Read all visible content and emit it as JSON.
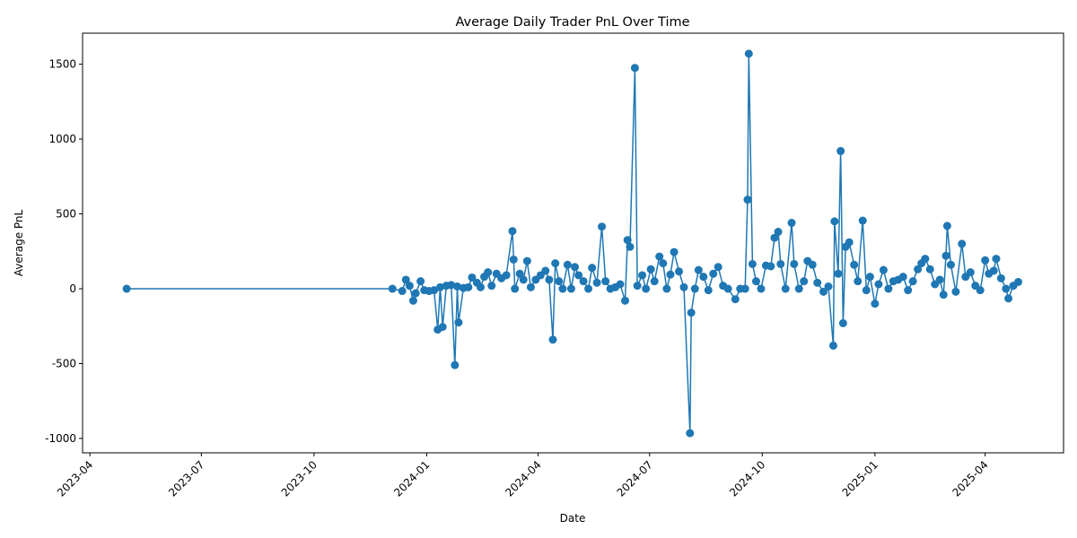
{
  "chart_data": {
    "type": "line",
    "title": "Average Daily Trader PnL Over Time",
    "x_label": "Date",
    "y_label": "Average PnL",
    "xlim": [
      "2023-03-26",
      "2025-06-04"
    ],
    "xticks": [
      "2023-04",
      "2023-07",
      "2023-10",
      "2024-01",
      "2024-04",
      "2024-07",
      "2024-10",
      "2025-01",
      "2025-04"
    ],
    "ylim": [
      -1096,
      1707
    ],
    "yticks": [
      -1000,
      -500,
      0,
      500,
      1000,
      1500
    ],
    "grid": false,
    "x": [
      "2023-05-01",
      "2023-12-04",
      "2023-12-12",
      "2023-12-15",
      "2023-12-18",
      "2023-12-21",
      "2023-12-23",
      "2023-12-27",
      "2023-12-30",
      "2024-01-03",
      "2024-01-07",
      "2024-01-10",
      "2024-01-12",
      "2024-01-14",
      "2024-01-17",
      "2024-01-21",
      "2024-01-24",
      "2024-01-26",
      "2024-01-27",
      "2024-01-31",
      "2024-02-04",
      "2024-02-07",
      "2024-02-11",
      "2024-02-14",
      "2024-02-17",
      "2024-02-20",
      "2024-02-23",
      "2024-02-27",
      "2024-03-02",
      "2024-03-06",
      "2024-03-11",
      "2024-03-12",
      "2024-03-13",
      "2024-03-17",
      "2024-03-20",
      "2024-03-23",
      "2024-03-26",
      "2024-03-30",
      "2024-04-03",
      "2024-04-07",
      "2024-04-10",
      "2024-04-13",
      "2024-04-15",
      "2024-04-18",
      "2024-04-21",
      "2024-04-25",
      "2024-04-28",
      "2024-05-01",
      "2024-05-04",
      "2024-05-08",
      "2024-05-12",
      "2024-05-15",
      "2024-05-19",
      "2024-05-23",
      "2024-05-26",
      "2024-05-30",
      "2024-06-03",
      "2024-06-07",
      "2024-06-11",
      "2024-06-13",
      "2024-06-15",
      "2024-06-19",
      "2024-06-21",
      "2024-06-25",
      "2024-06-28",
      "2024-07-02",
      "2024-07-05",
      "2024-07-09",
      "2024-07-12",
      "2024-07-15",
      "2024-07-18",
      "2024-07-21",
      "2024-07-25",
      "2024-07-29",
      "2024-08-03",
      "2024-08-04",
      "2024-08-07",
      "2024-08-10",
      "2024-08-14",
      "2024-08-18",
      "2024-08-22",
      "2024-08-26",
      "2024-08-30",
      "2024-09-03",
      "2024-09-09",
      "2024-09-13",
      "2024-09-17",
      "2024-09-19",
      "2024-09-20",
      "2024-09-23",
      "2024-09-26",
      "2024-09-30",
      "2024-10-04",
      "2024-10-08",
      "2024-10-11",
      "2024-10-14",
      "2024-10-16",
      "2024-10-20",
      "2024-10-25",
      "2024-10-27",
      "2024-10-31",
      "2024-11-04",
      "2024-11-07",
      "2024-11-11",
      "2024-11-15",
      "2024-11-20",
      "2024-11-24",
      "2024-11-28",
      "2024-11-29",
      "2024-12-02",
      "2024-12-04",
      "2024-12-06",
      "2024-12-08",
      "2024-12-11",
      "2024-12-15",
      "2024-12-18",
      "2024-12-22",
      "2024-12-25",
      "2024-12-28",
      "2025-01-01",
      "2025-01-04",
      "2025-01-08",
      "2025-01-12",
      "2025-01-16",
      "2025-01-20",
      "2025-01-24",
      "2025-01-28",
      "2025-02-01",
      "2025-02-05",
      "2025-02-08",
      "2025-02-11",
      "2025-02-15",
      "2025-02-19",
      "2025-02-23",
      "2025-02-26",
      "2025-02-28",
      "2025-03-01",
      "2025-03-04",
      "2025-03-08",
      "2025-03-13",
      "2025-03-16",
      "2025-03-20",
      "2025-03-24",
      "2025-03-28",
      "2025-04-01",
      "2025-04-04",
      "2025-04-08",
      "2025-04-10",
      "2025-04-14",
      "2025-04-18",
      "2025-04-20",
      "2025-04-24",
      "2025-04-28"
    ],
    "series": [
      {
        "color": "#1f77b4",
        "values": [
          0,
          0,
          -15,
          60,
          20,
          -80,
          -30,
          50,
          -10,
          -15,
          -10,
          -273,
          10,
          -255,
          20,
          25,
          -510,
          15,
          -225,
          5,
          10,
          75,
          40,
          10,
          80,
          110,
          20,
          100,
          70,
          90,
          385,
          195,
          0,
          100,
          60,
          185,
          10,
          60,
          90,
          120,
          60,
          -340,
          170,
          50,
          0,
          160,
          0,
          145,
          90,
          50,
          0,
          140,
          40,
          415,
          50,
          0,
          10,
          30,
          -80,
          325,
          280,
          1475,
          20,
          90,
          0,
          130,
          50,
          215,
          170,
          0,
          95,
          245,
          115,
          10,
          -965,
          -160,
          0,
          125,
          80,
          -10,
          100,
          145,
          20,
          0,
          -70,
          0,
          0,
          595,
          1570,
          165,
          50,
          0,
          155,
          150,
          340,
          380,
          165,
          0,
          440,
          165,
          0,
          50,
          185,
          160,
          40,
          -20,
          15,
          -380,
          450,
          100,
          920,
          -230,
          280,
          310,
          160,
          50,
          455,
          -10,
          80,
          -100,
          30,
          125,
          0,
          50,
          60,
          80,
          -10,
          50,
          130,
          170,
          200,
          130,
          30,
          60,
          -40,
          220,
          420,
          160,
          -20,
          300,
          80,
          110,
          20,
          -10,
          190,
          100,
          120,
          200,
          70,
          0,
          -65,
          20,
          45
        ]
      }
    ]
  }
}
